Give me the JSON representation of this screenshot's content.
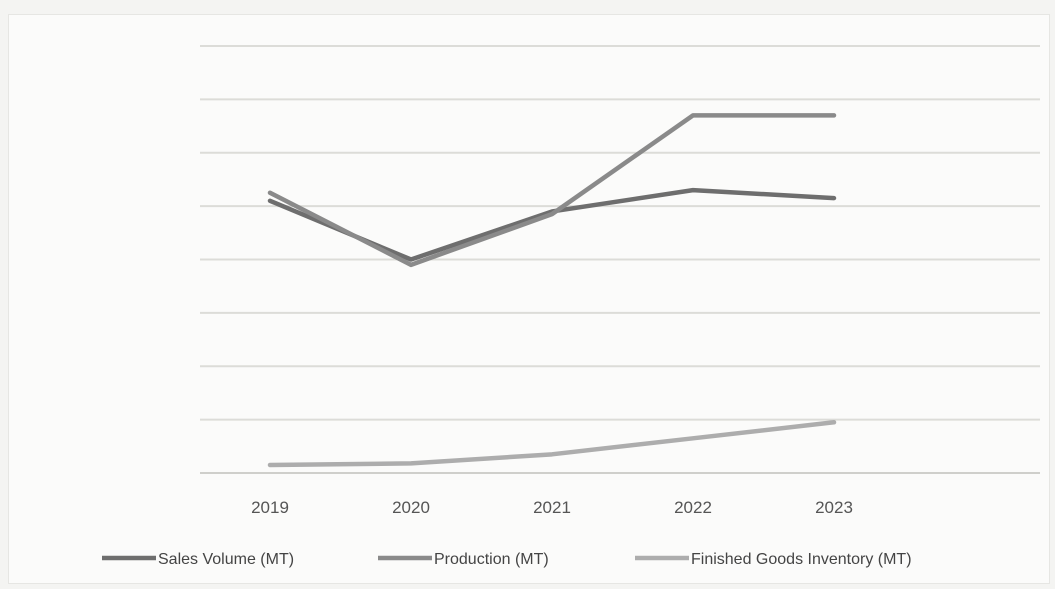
{
  "chart_data": {
    "type": "line",
    "categories": [
      "2019",
      "2020",
      "2021",
      "2022",
      "2023"
    ],
    "series": [
      {
        "name": "Sales Volume (MT)",
        "values": [
          5.1,
          4.0,
          4.9,
          5.3,
          5.15
        ],
        "color": "#6e6e6e"
      },
      {
        "name": "Production (MT)",
        "values": [
          5.25,
          3.9,
          4.85,
          6.7,
          6.7
        ],
        "color": "#8a8a8a"
      },
      {
        "name": "Finished Goods Inventory (MT)",
        "values": [
          0.15,
          0.18,
          0.35,
          0.65,
          0.95
        ],
        "color": "#adadad"
      }
    ],
    "ylim": [
      0,
      8
    ],
    "y_gridlines": 9,
    "grid": true,
    "legend_position": "bottom",
    "y_tick_labels_shown": false
  }
}
